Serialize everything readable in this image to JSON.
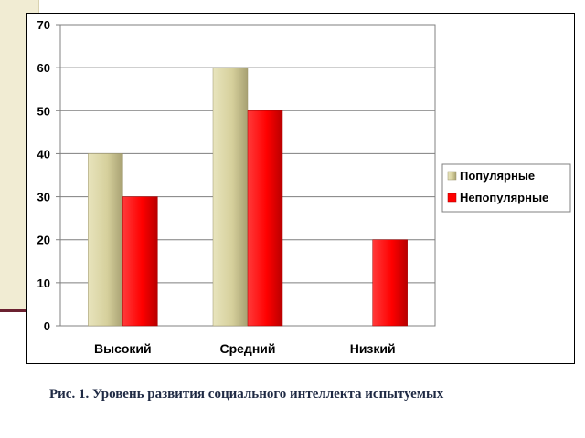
{
  "chart_data": {
    "type": "bar",
    "categories": [
      "Высокий",
      "Средний",
      "Низкий"
    ],
    "series": [
      {
        "name": "Популярные",
        "values": [
          40,
          60,
          0
        ],
        "color": "#d8d3a2"
      },
      {
        "name": "Непопулярные",
        "values": [
          30,
          50,
          20
        ],
        "color": "#ff0000"
      }
    ],
    "yticks": [
      0,
      10,
      20,
      30,
      40,
      50,
      60,
      70
    ],
    "ylim": [
      0,
      70
    ],
    "grid": true,
    "legend": "right"
  },
  "caption": "Рис. 1. Уровень развития социального интеллекта испытуемых"
}
